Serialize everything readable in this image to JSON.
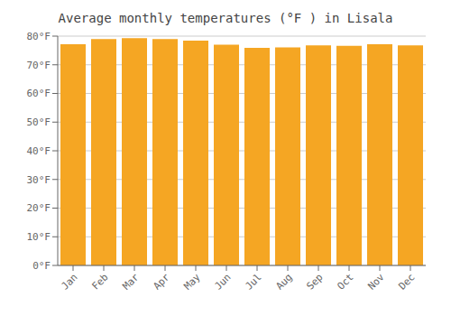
{
  "chart_data": {
    "type": "bar",
    "title": "Average monthly temperatures (°F ) in Lisala",
    "categories": [
      "Jan",
      "Feb",
      "Mar",
      "Apr",
      "May",
      "Jun",
      "Jul",
      "Aug",
      "Sep",
      "Oct",
      "Nov",
      "Dec"
    ],
    "values": [
      77.2,
      79.0,
      79.3,
      79.0,
      78.4,
      77.0,
      75.9,
      76.1,
      76.8,
      76.6,
      77.2,
      76.8
    ],
    "color": "#F5A623",
    "ylim": [
      0,
      80
    ],
    "yticks": [
      {
        "value": 0,
        "label": "0°F"
      },
      {
        "value": 10,
        "label": "10°F"
      },
      {
        "value": 20,
        "label": "20°F"
      },
      {
        "value": 30,
        "label": "30°F"
      },
      {
        "value": 40,
        "label": "40°F"
      },
      {
        "value": 50,
        "label": "50°F"
      },
      {
        "value": 60,
        "label": "60°F"
      },
      {
        "value": 70,
        "label": "70°F"
      },
      {
        "value": 80,
        "label": "80°F"
      }
    ],
    "grid": true
  }
}
